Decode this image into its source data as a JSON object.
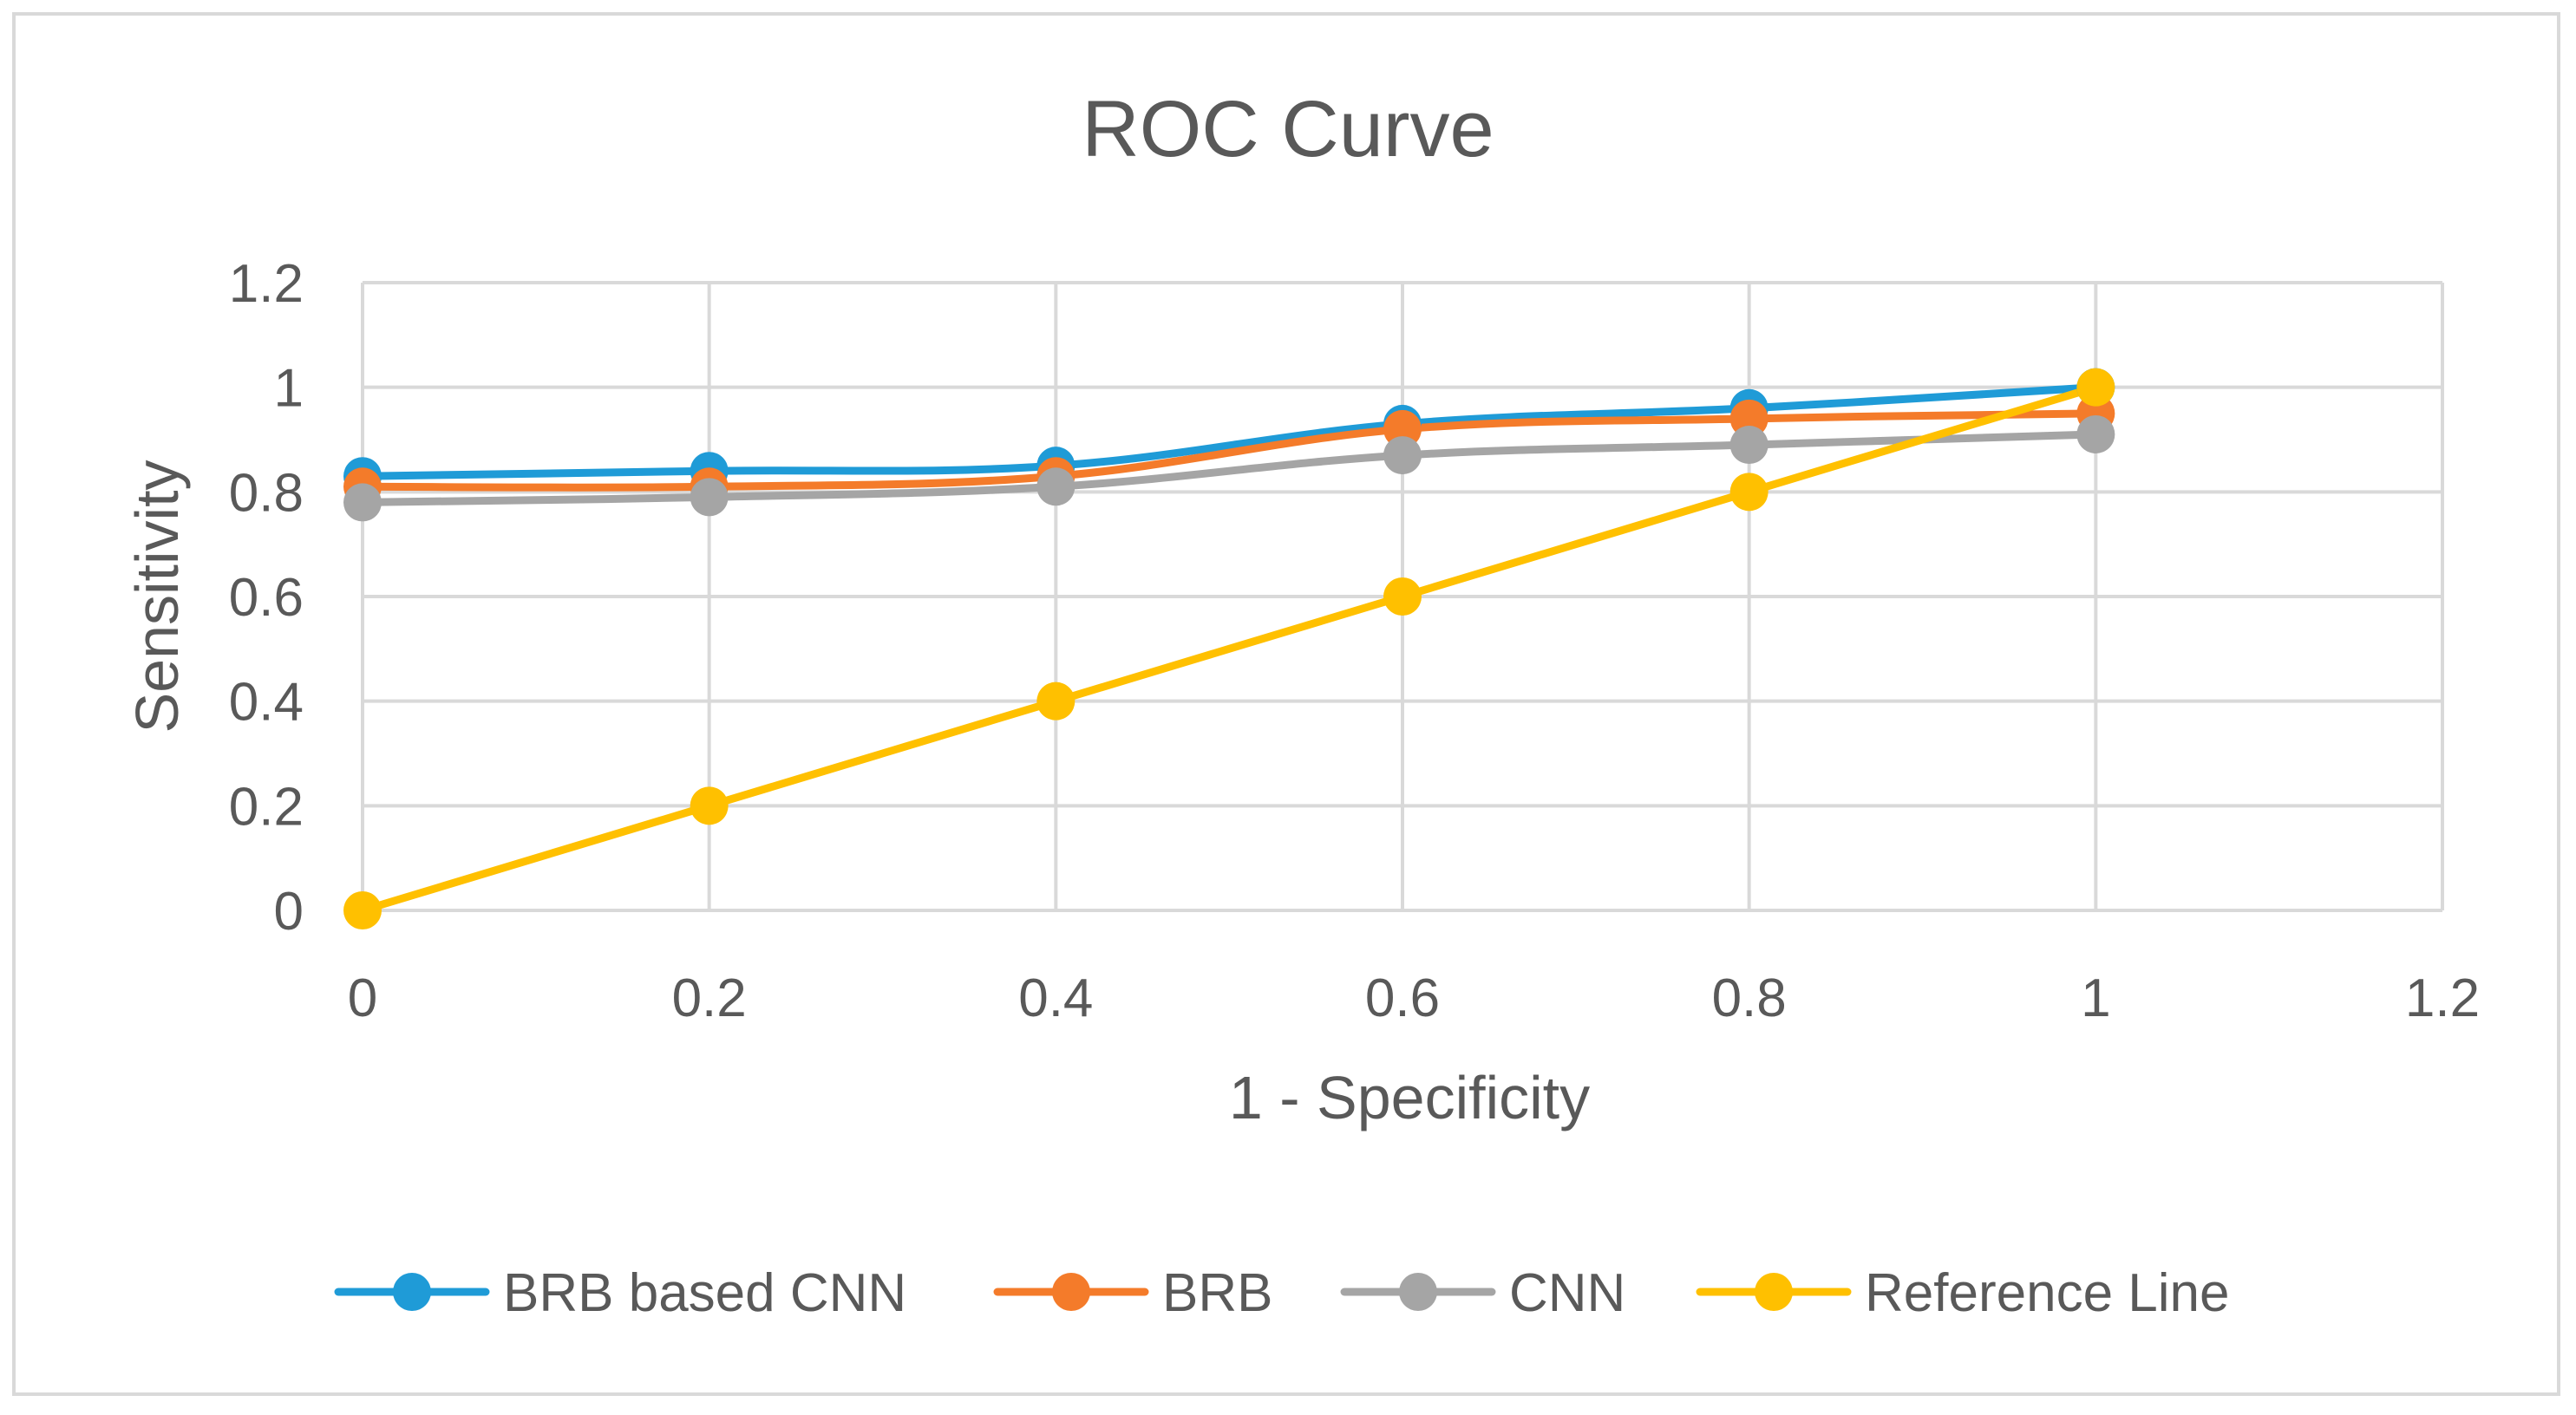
{
  "chart_data": {
    "type": "line",
    "title": "ROC Curve",
    "xlabel": "1 - Specificity",
    "ylabel": "Sensitivity",
    "xlim": [
      0,
      1.2
    ],
    "ylim": [
      0,
      1.2
    ],
    "x_ticks": [
      0,
      0.2,
      0.4,
      0.6,
      0.8,
      1,
      1.2
    ],
    "y_ticks": [
      0,
      0.2,
      0.4,
      0.6,
      0.8,
      1,
      1.2
    ],
    "x_tick_labels": [
      "0",
      "0.2",
      "0.4",
      "0.6",
      "0.8",
      "1",
      "1.2"
    ],
    "y_tick_labels": [
      "0",
      "0.2",
      "0.4",
      "0.6",
      "0.8",
      "1",
      "1.2"
    ],
    "grid": true,
    "legend_position": "bottom",
    "x": [
      0,
      0.2,
      0.4,
      0.6,
      0.8,
      1
    ],
    "series": [
      {
        "name": "BRB based CNN",
        "color": "#1f9bd7",
        "values": [
          0.83,
          0.84,
          0.85,
          0.93,
          0.96,
          1.0
        ]
      },
      {
        "name": "BRB",
        "color": "#f47b2a",
        "values": [
          0.81,
          0.81,
          0.83,
          0.92,
          0.94,
          0.95
        ]
      },
      {
        "name": "CNN",
        "color": "#a5a5a5",
        "values": [
          0.78,
          0.79,
          0.81,
          0.87,
          0.89,
          0.91
        ]
      },
      {
        "name": "Reference Line",
        "color": "#ffc000",
        "values": [
          0,
          0.2,
          0.4,
          0.6,
          0.8,
          1.0
        ]
      }
    ]
  }
}
